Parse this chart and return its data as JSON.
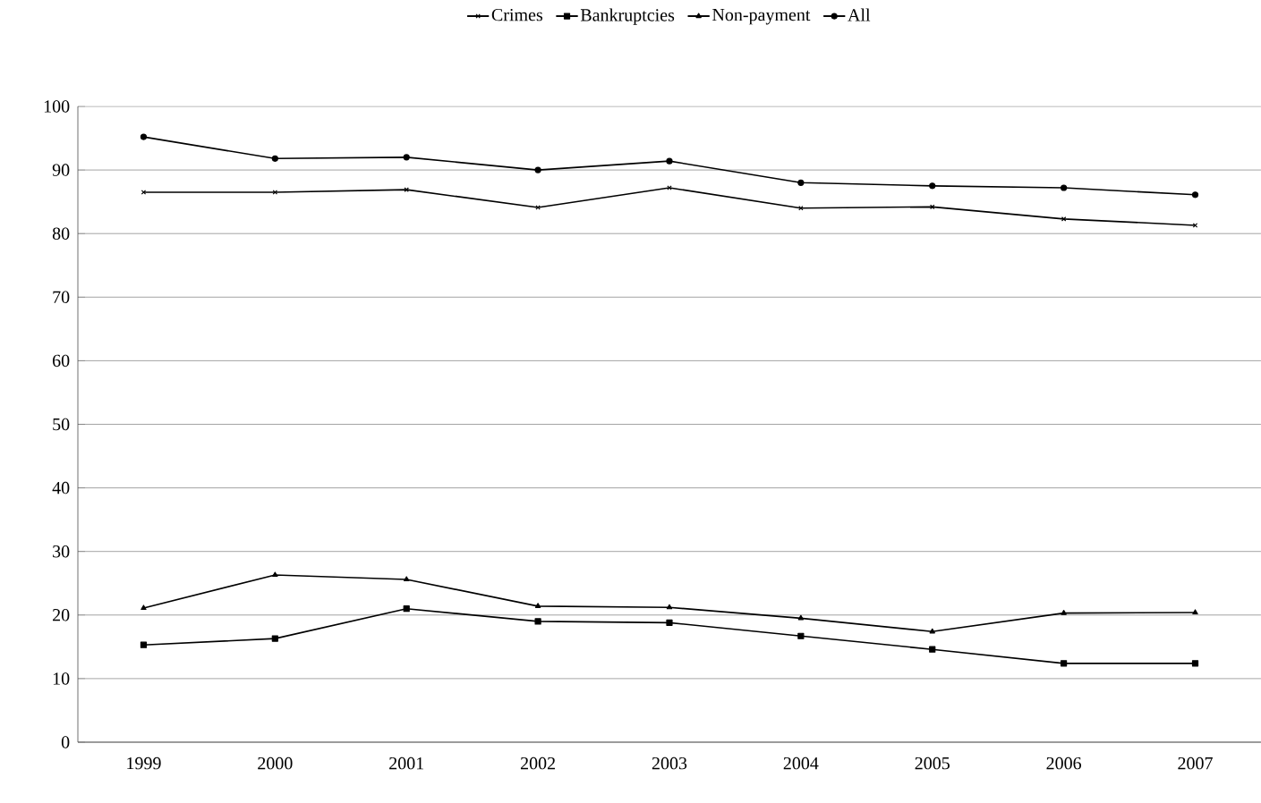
{
  "chart_data": {
    "type": "line",
    "categories": [
      "1999",
      "2000",
      "2001",
      "2002",
      "2003",
      "2004",
      "2005",
      "2006",
      "2007"
    ],
    "series": [
      {
        "name": "Crimes",
        "color": "#000000",
        "marker": "cross",
        "values": [
          86.5,
          86.5,
          86.9,
          84.1,
          87.2,
          84.0,
          84.2,
          82.3,
          81.3
        ]
      },
      {
        "name": "Bankruptcies",
        "color": "#000000",
        "marker": "square",
        "values": [
          15.3,
          16.3,
          21.0,
          19.0,
          18.8,
          16.7,
          14.6,
          12.4,
          12.4
        ]
      },
      {
        "name": "Non-payment",
        "color": "#000000",
        "marker": "triangle",
        "values": [
          21.1,
          26.3,
          25.6,
          21.4,
          21.2,
          19.5,
          17.4,
          20.3,
          20.4
        ]
      },
      {
        "name": "All",
        "color": "#000000",
        "marker": "circle",
        "values": [
          95.2,
          91.8,
          92.0,
          90.0,
          91.4,
          88.0,
          87.5,
          87.2,
          86.1
        ]
      }
    ],
    "ylim": [
      0,
      100
    ],
    "yticks": [
      0,
      10,
      20,
      30,
      40,
      50,
      60,
      70,
      80,
      90,
      100
    ],
    "grid": "y",
    "legend": "top",
    "line_style": "solid"
  }
}
